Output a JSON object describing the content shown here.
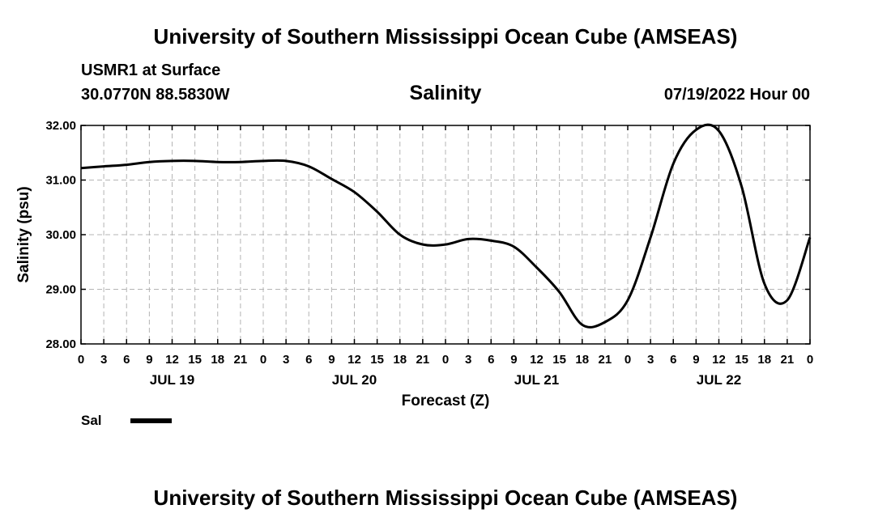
{
  "header": {
    "title": "University of Southern Mississippi Ocean Cube (AMSEAS)",
    "station": "USMR1 at Surface",
    "coordinates": "30.0770N  88.5830W",
    "chart_title": "Salinity",
    "date": "07/19/2022 Hour 00"
  },
  "footer": {
    "title": "University of Southern Mississippi Ocean Cube (AMSEAS)"
  },
  "legend": {
    "label": "Sal",
    "color": "#000000"
  },
  "chart_data": {
    "type": "line",
    "title": "Salinity",
    "xlabel": "Forecast (Z)",
    "ylabel": "Salinity (psu)",
    "ylim": [
      28.0,
      32.0
    ],
    "yticks": [
      "28.00",
      "29.00",
      "30.00",
      "31.00",
      "32.00"
    ],
    "xlim": [
      0,
      96
    ],
    "x_tick_step_hours": 3,
    "x_tick_labels": [
      "0",
      "3",
      "6",
      "9",
      "12",
      "15",
      "18",
      "21",
      "0",
      "3",
      "6",
      "9",
      "12",
      "15",
      "18",
      "21",
      "0",
      "3",
      "6",
      "9",
      "12",
      "15",
      "18",
      "21",
      "0",
      "3",
      "6",
      "9",
      "12",
      "15",
      "18",
      "21",
      "0"
    ],
    "day_labels": [
      {
        "hour": 12,
        "label": "JUL 19"
      },
      {
        "hour": 36,
        "label": "JUL 20"
      },
      {
        "hour": 60,
        "label": "JUL 21"
      },
      {
        "hour": 84,
        "label": "JUL 22"
      }
    ],
    "grid": true,
    "series": [
      {
        "name": "Sal",
        "color": "#000000",
        "x": [
          0,
          3,
          6,
          9,
          12,
          15,
          18,
          21,
          24,
          27,
          30,
          33,
          36,
          39,
          42,
          45,
          48,
          51,
          54,
          57,
          60,
          63,
          66,
          69,
          72,
          75,
          78,
          81,
          84,
          87,
          90,
          93,
          96
        ],
        "values": [
          31.22,
          31.25,
          31.28,
          31.33,
          31.35,
          31.35,
          31.33,
          31.33,
          31.35,
          31.35,
          31.25,
          31.02,
          30.78,
          30.42,
          30.0,
          29.82,
          29.82,
          29.92,
          29.89,
          29.78,
          29.4,
          28.95,
          28.35,
          28.4,
          28.8,
          29.95,
          31.3,
          31.92,
          31.9,
          30.88,
          29.1,
          28.8,
          29.95
        ]
      }
    ]
  }
}
